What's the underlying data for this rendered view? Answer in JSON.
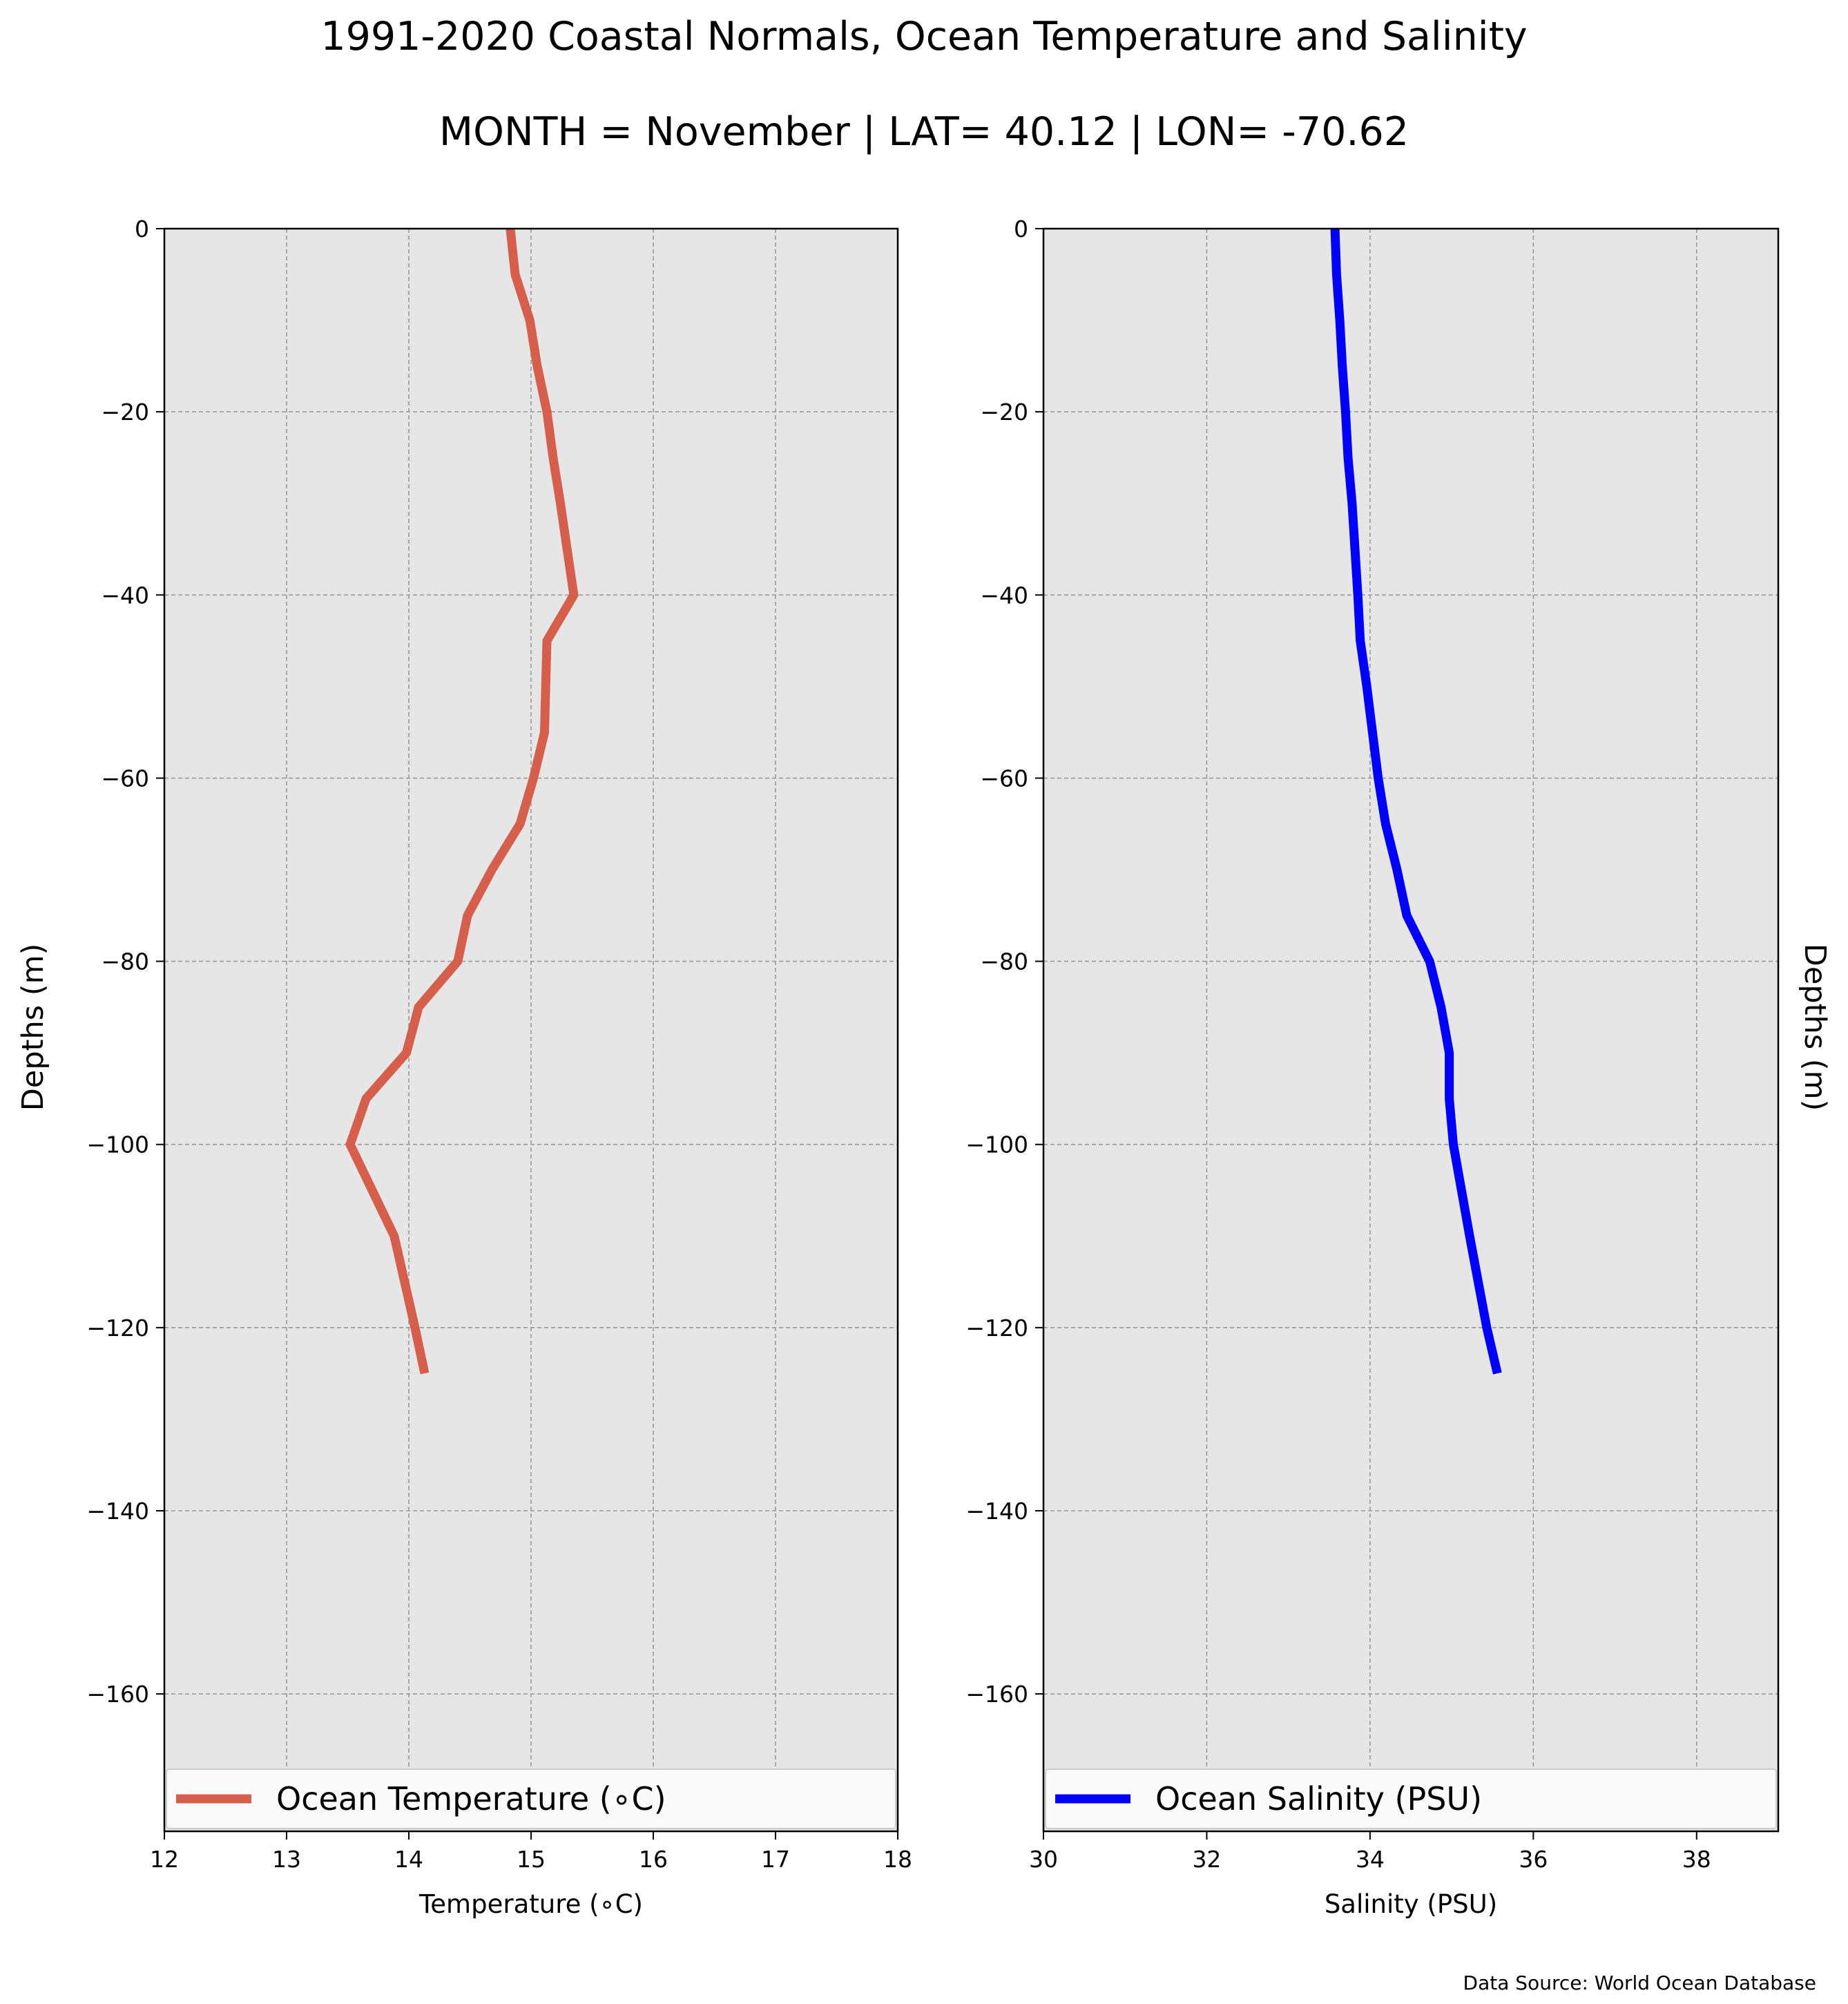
{
  "title": "1991-2020 Coastal Normals, Ocean Temperature and Salinity",
  "subtitle": "MONTH = November | LAT= 40.12 | LON= -70.62",
  "source_note": "Data Source: World Ocean Database",
  "colors": {
    "temperature": "#d65f4c",
    "salinity": "#0000ff",
    "plot_bg": "#e6e6e6",
    "grid": "#999999"
  },
  "chart_data": [
    {
      "type": "line",
      "xlabel": "Temperature ($^\\circ$C)",
      "xlabel_display": "Temperature (∘C)",
      "ylabel": "Depths (m)",
      "xlim": [
        12,
        18
      ],
      "ylim": [
        -175,
        0
      ],
      "xticks": [
        "12",
        "13",
        "14",
        "15",
        "16",
        "17",
        "18"
      ],
      "yticks": [
        "0",
        "−20",
        "−40",
        "−60",
        "−80",
        "−100",
        "−120",
        "−140",
        "−160"
      ],
      "ytick_values": [
        0,
        -20,
        -40,
        -60,
        -80,
        -100,
        -120,
        -140,
        -160
      ],
      "xtick_values": [
        12,
        13,
        14,
        15,
        16,
        17,
        18
      ],
      "grid": true,
      "legend": "bottom",
      "series": [
        {
          "name": "Ocean Temperature (∘C)",
          "color": "#d65f4c",
          "x": [
            14.83,
            14.87,
            14.99,
            15.05,
            15.13,
            15.18,
            15.24,
            15.35,
            15.13,
            15.12,
            15.11,
            15.02,
            14.91,
            14.68,
            14.48,
            14.4,
            14.08,
            13.98,
            13.65,
            13.52,
            13.7,
            13.88,
            14.05,
            14.13
          ],
          "y": [
            0,
            -5,
            -10,
            -15,
            -20,
            -25,
            -30,
            -40,
            -45,
            -50,
            -55,
            -60,
            -65,
            -70,
            -75,
            -80,
            -85,
            -90,
            -95,
            -100,
            -105,
            -110,
            -120,
            -125
          ]
        }
      ]
    },
    {
      "type": "line",
      "xlabel": "Salinity (PSU)",
      "ylabel": "Depths (m)",
      "xlim": [
        30,
        39
      ],
      "ylim": [
        -175,
        0
      ],
      "xticks": [
        "30",
        "32",
        "34",
        "36",
        "38"
      ],
      "xtick_values": [
        30,
        32,
        34,
        36,
        38
      ],
      "yticks": [
        "0",
        "−20",
        "−40",
        "−60",
        "−80",
        "−100",
        "−120",
        "−140",
        "−160"
      ],
      "ytick_values": [
        0,
        -20,
        -40,
        -60,
        -80,
        -100,
        -120,
        -140,
        -160
      ],
      "grid": true,
      "legend": "bottom",
      "series": [
        {
          "name": "Ocean Salinity (PSU)",
          "color": "#0000ff",
          "x": [
            33.57,
            33.59,
            33.63,
            33.66,
            33.7,
            33.73,
            33.78,
            33.85,
            33.88,
            33.96,
            34.03,
            34.1,
            34.19,
            34.33,
            34.45,
            34.73,
            34.87,
            34.97,
            34.97,
            35.02,
            35.12,
            35.22,
            35.43,
            35.56
          ],
          "y": [
            0,
            -5,
            -10,
            -15,
            -20,
            -25,
            -30,
            -40,
            -45,
            -50,
            -55,
            -60,
            -65,
            -70,
            -75,
            -80,
            -85,
            -90,
            -95,
            -100,
            -105,
            -110,
            -120,
            -125
          ]
        }
      ]
    }
  ]
}
